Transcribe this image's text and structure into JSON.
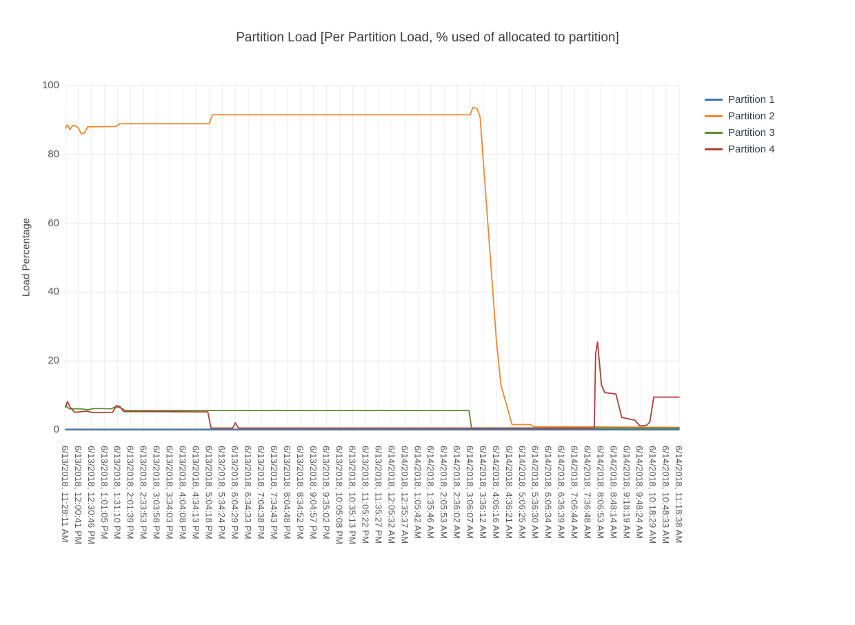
{
  "chart_data": {
    "type": "line",
    "title": "Partition Load [Per Partition Load, % used of allocated to partition]",
    "xlabel": "",
    "ylabel": "Load Percentage",
    "ylim": [
      0,
      100
    ],
    "yticks": [
      0,
      20,
      40,
      60,
      80,
      100
    ],
    "grid": true,
    "legend_position": "top-right",
    "categories": [
      "6/13/2018, 11:28:11 AM",
      "6/13/2018, 12:00:41 PM",
      "6/13/2018, 12:30:46 PM",
      "6/13/2018, 1:01:05 PM",
      "6/13/2018, 1:31:10 PM",
      "6/13/2018, 2:01:39 PM",
      "6/13/2018, 2:33:53 PM",
      "6/13/2018, 3:03:58 PM",
      "6/13/2018, 3:34:03 PM",
      "6/13/2018, 4:04:08 PM",
      "6/13/2018, 4:34:13 PM",
      "6/13/2018, 5:04:18 PM",
      "6/13/2018, 5:34:24 PM",
      "6/13/2018, 6:04:29 PM",
      "6/13/2018, 6:34:33 PM",
      "6/13/2018, 7:04:38 PM",
      "6/13/2018, 7:34:43 PM",
      "6/13/2018, 8:04:48 PM",
      "6/13/2018, 8:34:52 PM",
      "6/13/2018, 9:04:57 PM",
      "6/13/2018, 9:35:02 PM",
      "6/13/2018, 10:05:08 PM",
      "6/13/2018, 10:35:13 PM",
      "6/13/2018, 11:05:22 PM",
      "6/13/2018, 11:35:27 PM",
      "6/14/2018, 12:05:32 AM",
      "6/14/2018, 12:35:37 AM",
      "6/14/2018, 1:05:42 AM",
      "6/14/2018, 1:35:46 AM",
      "6/14/2018, 2:05:53 AM",
      "6/14/2018, 2:36:02 AM",
      "6/14/2018, 3:06:07 AM",
      "6/14/2018, 3:36:12 AM",
      "6/14/2018, 4:06:16 AM",
      "6/14/2018, 4:36:21 AM",
      "6/14/2018, 5:06:25 AM",
      "6/14/2018, 5:36:30 AM",
      "6/14/2018, 6:06:34 AM",
      "6/14/2018, 6:36:39 AM",
      "6/14/2018, 7:06:44 AM",
      "6/14/2018, 7:36:48 AM",
      "6/14/2018, 8:06:53 AM",
      "6/14/2018, 8:48:14 AM",
      "6/14/2018, 9:18:19 AM",
      "6/14/2018, 9:48:24 AM",
      "6/14/2018, 10:18:29 AM",
      "6/14/2018, 10:48:33 AM",
      "6/14/2018, 11:18:38 AM"
    ],
    "series": [
      {
        "name": "Partition 1",
        "color": "#4273aa",
        "points": [
          [
            0,
            0.15
          ],
          [
            47,
            0.15
          ]
        ]
      },
      {
        "name": "Partition 2",
        "color": "#f0862f",
        "points": [
          [
            0,
            87.6
          ],
          [
            0.15,
            88.6
          ],
          [
            0.35,
            87.2
          ],
          [
            0.55,
            88.4
          ],
          [
            0.8,
            88.2
          ],
          [
            1.0,
            87.6
          ],
          [
            1.2,
            86.0
          ],
          [
            1.45,
            86.2
          ],
          [
            1.7,
            88.0
          ],
          [
            3.9,
            88.1
          ],
          [
            4.15,
            88.9
          ],
          [
            11.0,
            88.9
          ],
          [
            11.25,
            91.5
          ],
          [
            31.0,
            91.5
          ],
          [
            31.2,
            93.6
          ],
          [
            31.5,
            93.4
          ],
          [
            31.75,
            91.0
          ],
          [
            33.0,
            26.0
          ],
          [
            33.35,
            13.0
          ],
          [
            34.2,
            1.5
          ],
          [
            35.6,
            1.5
          ],
          [
            35.85,
            0.9
          ],
          [
            47,
            0.7
          ]
        ]
      },
      {
        "name": "Partition 3",
        "color": "#5a8b2f",
        "points": [
          [
            0,
            7.0
          ],
          [
            0.3,
            6.1
          ],
          [
            1.2,
            6.1
          ],
          [
            1.7,
            5.8
          ],
          [
            2.2,
            6.2
          ],
          [
            3.5,
            6.1
          ],
          [
            3.85,
            6.7
          ],
          [
            4.2,
            6.4
          ],
          [
            4.6,
            5.6
          ],
          [
            30.9,
            5.6
          ],
          [
            31.1,
            0.5
          ],
          [
            47,
            0.5
          ]
        ]
      },
      {
        "name": "Partition 4",
        "color": "#ab3f38",
        "points": [
          [
            0,
            6.5
          ],
          [
            0.15,
            8.2
          ],
          [
            0.35,
            6.6
          ],
          [
            0.7,
            5.1
          ],
          [
            1.6,
            5.4
          ],
          [
            2.1,
            5.0
          ],
          [
            3.6,
            5.1
          ],
          [
            3.9,
            7.0
          ],
          [
            4.15,
            6.8
          ],
          [
            4.45,
            5.3
          ],
          [
            10.9,
            5.2
          ],
          [
            11.15,
            0.5
          ],
          [
            12.8,
            0.5
          ],
          [
            13.0,
            2.0
          ],
          [
            13.25,
            0.5
          ],
          [
            40.5,
            0.5
          ],
          [
            40.6,
            22.0
          ],
          [
            40.75,
            25.5
          ],
          [
            41.05,
            13.0
          ],
          [
            41.3,
            10.8
          ],
          [
            42.15,
            10.4
          ],
          [
            42.6,
            3.6
          ],
          [
            43.3,
            3.0
          ],
          [
            43.6,
            2.8
          ],
          [
            44.0,
            1.1
          ],
          [
            44.5,
            1.3
          ],
          [
            44.75,
            2.2
          ],
          [
            45.05,
            9.5
          ],
          [
            47,
            9.5
          ]
        ]
      }
    ]
  }
}
